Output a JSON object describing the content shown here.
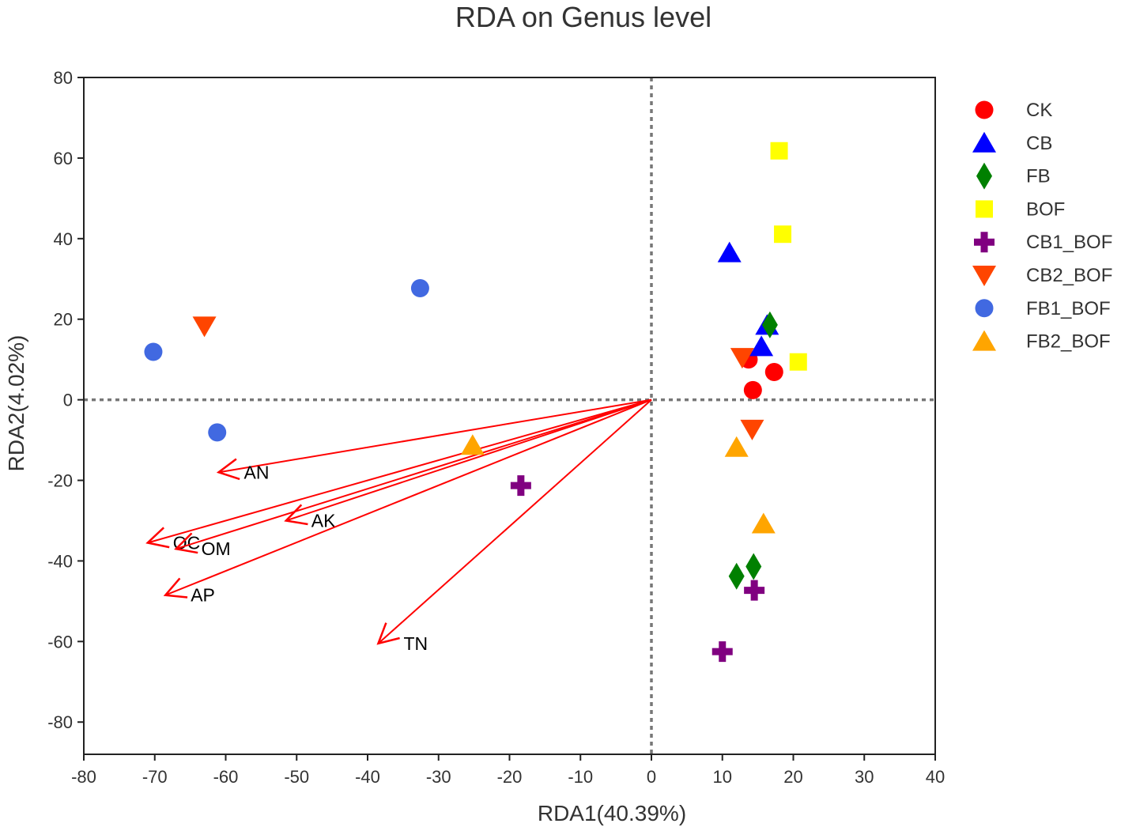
{
  "chart_data": {
    "type": "scatter",
    "title": "RDA on Genus level",
    "xlabel": "RDA1(40.39%)",
    "ylabel": "RDA2(4.02%)",
    "xlim": [
      -80,
      40
    ],
    "ylim": [
      -88,
      80
    ],
    "xticks": [
      -80,
      -70,
      -60,
      -50,
      -40,
      -30,
      -20,
      -10,
      0,
      10,
      20,
      30,
      40
    ],
    "yticks": [
      -80,
      -60,
      -40,
      -20,
      0,
      20,
      40,
      60,
      80
    ],
    "reference_lines": {
      "x": 0,
      "y": 0,
      "style": "dotted"
    },
    "legend_position": "right",
    "series": [
      {
        "name": "CK",
        "marker": "circle",
        "color": "#ff0000",
        "points": [
          [
            13.7,
            10.0
          ],
          [
            17.3,
            6.9
          ],
          [
            14.3,
            2.4
          ]
        ]
      },
      {
        "name": "CB",
        "marker": "triangle-up",
        "color": "#0000ff",
        "points": [
          [
            11.0,
            36.5
          ],
          [
            16.3,
            18.5
          ],
          [
            15.5,
            13.2
          ]
        ]
      },
      {
        "name": "FB",
        "marker": "diamond",
        "color": "#008000",
        "points": [
          [
            16.7,
            18.6
          ],
          [
            14.4,
            -41.4
          ],
          [
            12.0,
            -43.8
          ]
        ]
      },
      {
        "name": "BOF",
        "marker": "square",
        "color": "#ffff00",
        "points": [
          [
            18.0,
            61.8
          ],
          [
            18.5,
            41.1
          ],
          [
            20.7,
            9.4
          ]
        ]
      },
      {
        "name": "CB1_BOF",
        "marker": "cross",
        "color": "#800080",
        "points": [
          [
            -18.4,
            -21.3
          ],
          [
            14.5,
            -47.3
          ],
          [
            10.0,
            -62.5
          ]
        ]
      },
      {
        "name": "CB2_BOF",
        "marker": "triangle-down",
        "color": "#ff4500",
        "points": [
          [
            -63.0,
            18.3
          ],
          [
            12.8,
            10.5
          ],
          [
            14.2,
            -7.3
          ]
        ]
      },
      {
        "name": "FB1_BOF",
        "marker": "circle",
        "color": "#4169e1",
        "points": [
          [
            -32.6,
            27.7
          ],
          [
            -70.2,
            11.9
          ],
          [
            -61.2,
            -8.1
          ]
        ]
      },
      {
        "name": "FB2_BOF",
        "marker": "triangle-up",
        "color": "#ffa500",
        "points": [
          [
            -25.2,
            -11.3
          ],
          [
            12.0,
            -11.8
          ],
          [
            15.8,
            -30.8
          ]
        ]
      }
    ],
    "env_vectors": [
      {
        "name": "AN",
        "x": -61.0,
        "y": -18.0
      },
      {
        "name": "AK",
        "x": -51.5,
        "y": -30.0
      },
      {
        "name": "OC",
        "x": -71.0,
        "y": -35.5
      },
      {
        "name": "OM",
        "x": -67.0,
        "y": -37.0
      },
      {
        "name": "AP",
        "x": -68.5,
        "y": -48.5
      },
      {
        "name": "TN",
        "x": -38.5,
        "y": -60.5
      }
    ],
    "vector_color": "#ff0000"
  }
}
